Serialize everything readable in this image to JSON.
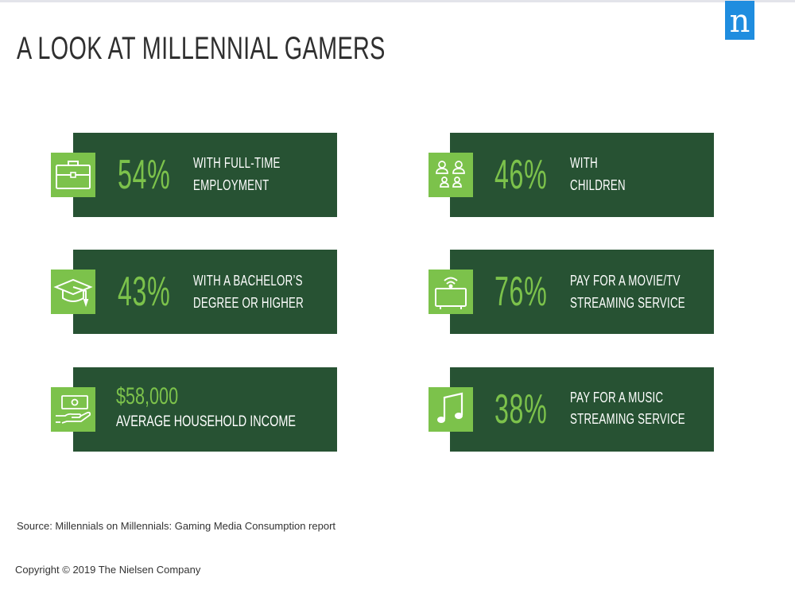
{
  "header": {
    "title": "A LOOK AT MILLENNIAL GAMERS",
    "logo_letter": "n",
    "logo_color": "#1f8ddf"
  },
  "colors": {
    "card_background": "#275233",
    "accent_green": "#7cc24b",
    "label_text": "#ffffff"
  },
  "stats": {
    "employment": {
      "value": "54%",
      "line1": "WITH FULL-TIME",
      "line2": "EMPLOYMENT",
      "icon": "briefcase-icon"
    },
    "children": {
      "value": "46%",
      "line1": "WITH",
      "line2": "CHILDREN",
      "icon": "family-icon"
    },
    "education": {
      "value": "43%",
      "line1": "WITH A BACHELOR’S",
      "line2": "DEGREE OR HIGHER",
      "icon": "graduation-cap-icon"
    },
    "video_streaming": {
      "value": "76%",
      "line1": "PAY FOR A MOVIE/TV",
      "line2": "STREAMING SERVICE",
      "icon": "tv-streaming-icon"
    },
    "income": {
      "value": "$58,000",
      "label": "AVERAGE HOUSEHOLD INCOME",
      "icon": "money-hand-icon"
    },
    "music_streaming": {
      "value": "38%",
      "line1": "PAY FOR A MUSIC",
      "line2": "STREAMING SERVICE",
      "icon": "music-note-icon"
    }
  },
  "footer": {
    "source": "Source: Millennials on Millennials: Gaming Media Consumption report",
    "copyright": "Copyright © 2019 The Nielsen Company"
  }
}
